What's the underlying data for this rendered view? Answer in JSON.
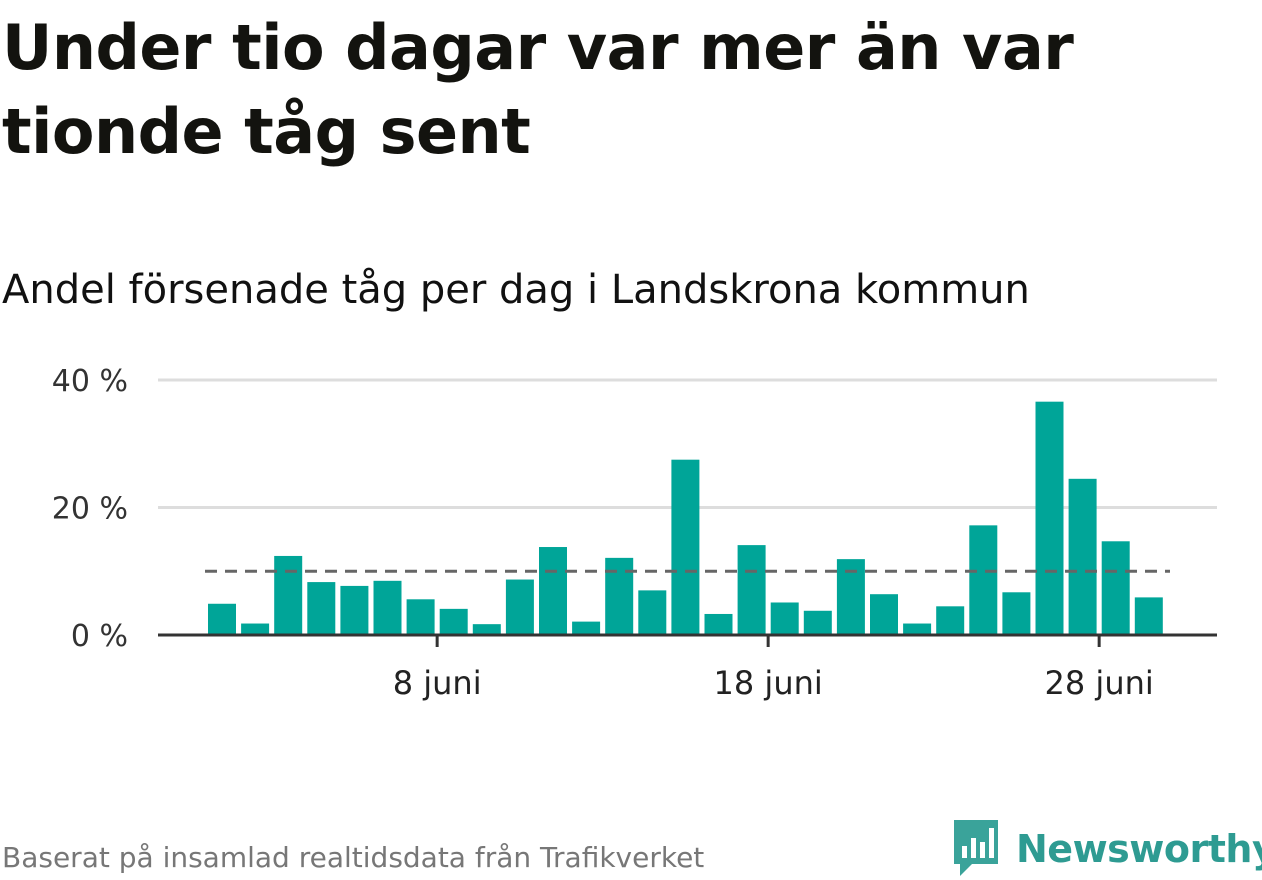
{
  "title": "Under tio dagar var mer än var tionde tåg sent",
  "subtitle": "Andel försenade tåg per dag i Landskrona kommun",
  "footer": "Baserat på insamlad realtidsdata från Trafikverket",
  "brand": {
    "name": "Newsworthy",
    "icon": "newsworthy-logo-icon"
  },
  "colors": {
    "bar": "#00a598",
    "reference": "#666666",
    "grid": "#dddddd",
    "axis": "#333333"
  },
  "chart_data": {
    "type": "bar",
    "title": "Andel försenade tåg per dag i Landskrona kommun",
    "x": [
      1,
      2,
      3,
      4,
      5,
      6,
      7,
      8,
      9,
      10,
      11,
      12,
      13,
      14,
      15,
      16,
      17,
      18,
      19,
      20,
      21,
      22,
      23,
      24,
      25,
      26,
      27,
      28,
      29
    ],
    "values": [
      4.9,
      1.8,
      12.4,
      8.3,
      7.7,
      8.5,
      5.6,
      4.1,
      1.7,
      8.7,
      13.8,
      2.1,
      12.1,
      7.0,
      27.5,
      3.3,
      14.1,
      5.1,
      3.8,
      11.9,
      6.4,
      1.8,
      4.5,
      17.2,
      6.7,
      36.6,
      24.5,
      14.7,
      5.9
    ],
    "reference_line": 10,
    "xticks": [
      {
        "x": 8,
        "label": "8 juni"
      },
      {
        "x": 18,
        "label": "18 juni"
      },
      {
        "x": 28,
        "label": "28 juni"
      }
    ],
    "yticks": [
      {
        "value": 0,
        "label": "0 %"
      },
      {
        "value": 20,
        "label": "20 %"
      },
      {
        "value": 40,
        "label": "40 %"
      }
    ],
    "ylim": [
      0,
      40
    ],
    "xlabel": "",
    "ylabel": "",
    "grid": true,
    "legend": "none"
  }
}
